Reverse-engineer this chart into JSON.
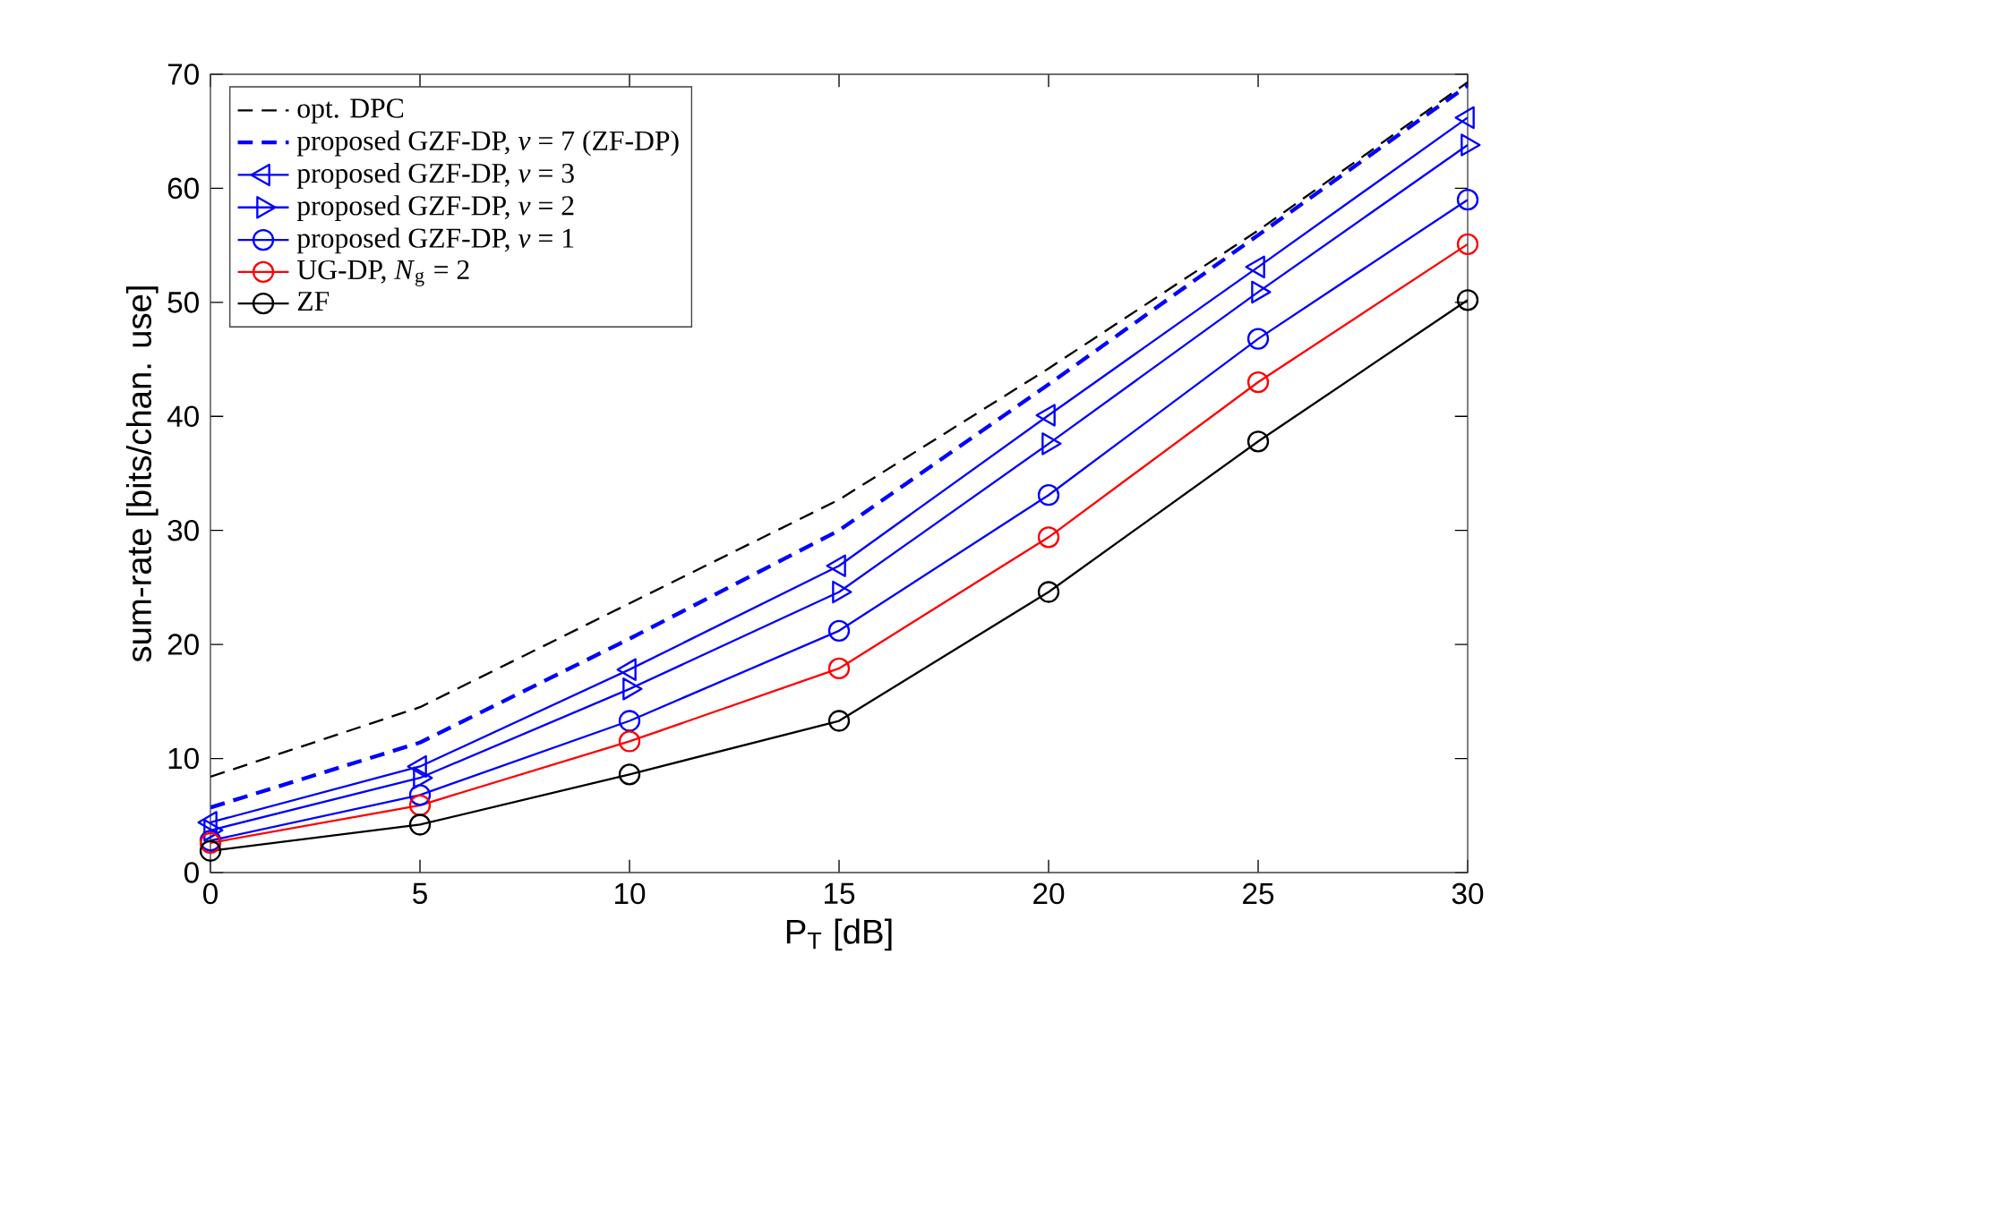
{
  "chart_data": {
    "type": "line",
    "xlabel": "P$_{T}$ [dB]",
    "ylabel": "sum-rate [bits/chan. use]",
    "x": [
      0,
      5,
      10,
      15,
      20,
      25,
      30
    ],
    "xlim": [
      0,
      30
    ],
    "xticks": [
      0,
      5,
      10,
      15,
      20,
      25,
      30
    ],
    "ylim": [
      0,
      70
    ],
    "yticks": [
      0,
      10,
      20,
      30,
      40,
      50,
      60,
      70
    ],
    "grid": false,
    "legend": "top left",
    "series": [
      {
        "name": "opt. DPC",
        "color": "#000000",
        "line_style": "dashed",
        "marker": "none",
        "values": [
          8.4,
          14.5,
          23.6,
          32.7,
          44.2,
          56.3,
          69.3
        ]
      },
      {
        "name": "proposed GZF-DP, *ν* = 7 (ZF-DP)",
        "color": "#0000ff",
        "line_style": "dashed",
        "marker": "none",
        "values": [
          5.7,
          11.4,
          20.5,
          30.0,
          42.8,
          55.9,
          69.0
        ]
      },
      {
        "name": "proposed GZF-DP, *ν* = 3",
        "color": "#0000ff",
        "line_style": "solid",
        "marker": "triangle left",
        "values": [
          4.4,
          9.3,
          17.8,
          26.9,
          40.1,
          53.1,
          66.2
        ]
      },
      {
        "name": "proposed GZF-DP, *ν* = 2",
        "color": "#0000ff",
        "line_style": "solid",
        "marker": "triangle right",
        "values": [
          3.7,
          8.3,
          16.1,
          24.6,
          37.6,
          50.9,
          63.8
        ]
      },
      {
        "name": "proposed GZF-DP, *ν* = 1",
        "color": "#0000ff",
        "line_style": "solid",
        "marker": "circle",
        "values": [
          2.8,
          6.8,
          13.3,
          21.2,
          33.1,
          46.8,
          59.0
        ]
      },
      {
        "name": "UG-DP, *N*$_{g}$ = 2",
        "color": "#ff0000",
        "line_style": "solid",
        "marker": "circle",
        "values": [
          2.6,
          5.9,
          11.5,
          17.9,
          29.4,
          43.0,
          55.1
        ]
      },
      {
        "name": "ZF",
        "color": "#000000",
        "line_style": "solid",
        "marker": "circle",
        "values": [
          1.9,
          4.2,
          8.6,
          13.3,
          24.6,
          37.8,
          50.2
        ]
      }
    ]
  }
}
